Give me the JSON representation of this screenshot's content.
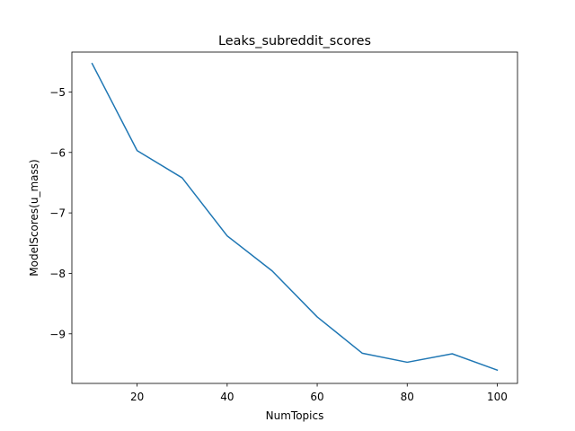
{
  "chart_data": {
    "type": "line",
    "title": "Leaks_subreddit_scores",
    "xlabel": "NumTopics",
    "ylabel": "ModelScores(u_mass)",
    "xlim": [
      5.5,
      104.5
    ],
    "ylim": [
      -9.82,
      -4.34
    ],
    "xticks": [
      20,
      40,
      60,
      80,
      100
    ],
    "xtick_labels": [
      "20",
      "40",
      "60",
      "80",
      "100"
    ],
    "yticks": [
      -9,
      -8,
      -7,
      -6,
      -5
    ],
    "ytick_labels": [
      "−9",
      "−8",
      "−7",
      "−6",
      "−5"
    ],
    "grid": false,
    "series": [
      {
        "color": "#1f77b4",
        "x": [
          10,
          20,
          30,
          40,
          50,
          60,
          70,
          80,
          90,
          100
        ],
        "y": [
          -4.53,
          -5.97,
          -6.42,
          -7.38,
          -7.96,
          -8.72,
          -9.32,
          -9.47,
          -9.33,
          -9.6
        ]
      }
    ]
  }
}
